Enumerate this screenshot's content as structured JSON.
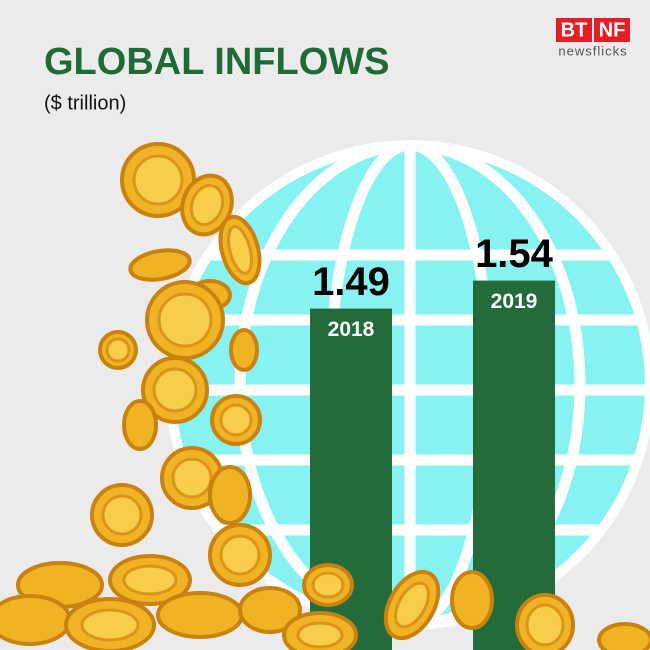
{
  "chart_data": {
    "type": "bar",
    "title": "GLOBAL INFLOWS",
    "subtitle": "($ trillion)",
    "categories": [
      "2018",
      "2019"
    ],
    "values": [
      1.49,
      1.54
    ],
    "color": "#236b3a",
    "ylim": [
      0.88,
      1.6
    ]
  },
  "logo": {
    "left": "BT",
    "right": "NF",
    "tagline": "newsflicks"
  }
}
